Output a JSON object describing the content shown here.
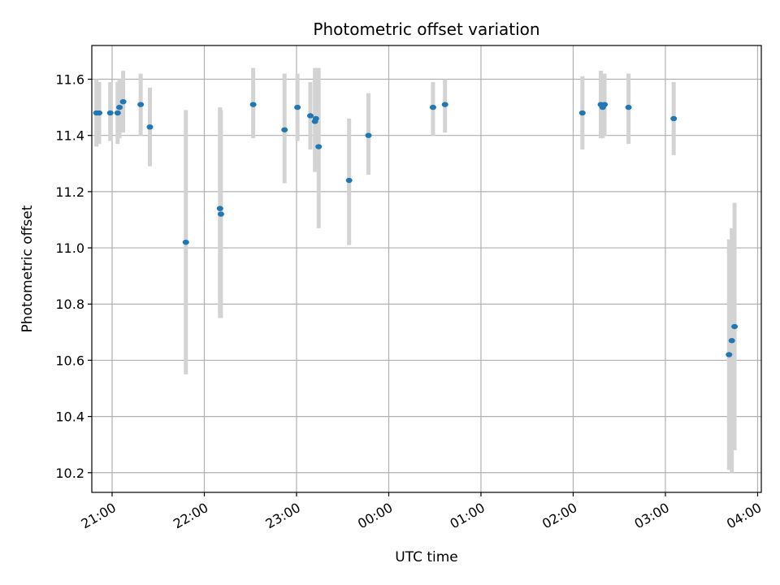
{
  "chart_data": {
    "type": "scatter",
    "title": "Photometric offset variation",
    "xlabel": "UTC time",
    "ylabel": "Photometric offset",
    "x_unit": "hours",
    "xlim": [
      20.78,
      28.04
    ],
    "ylim": [
      10.13,
      11.72
    ],
    "grid": true,
    "x_ticks": [
      {
        "value": 21,
        "label": "21:00"
      },
      {
        "value": 22,
        "label": "22:00"
      },
      {
        "value": 23,
        "label": "23:00"
      },
      {
        "value": 24,
        "label": "00:00"
      },
      {
        "value": 25,
        "label": "01:00"
      },
      {
        "value": 26,
        "label": "02:00"
      },
      {
        "value": 27,
        "label": "03:00"
      },
      {
        "value": 28,
        "label": "04:00"
      }
    ],
    "y_ticks": [
      {
        "value": 10.2,
        "label": "10.2"
      },
      {
        "value": 10.4,
        "label": "10.4"
      },
      {
        "value": 10.6,
        "label": "10.6"
      },
      {
        "value": 10.8,
        "label": "10.8"
      },
      {
        "value": 11.0,
        "label": "11.0"
      },
      {
        "value": 11.2,
        "label": "11.2"
      },
      {
        "value": 11.4,
        "label": "11.4"
      },
      {
        "value": 11.6,
        "label": "11.6"
      }
    ],
    "colors": {
      "point": "#1f77b4",
      "errorbar": "#d3d3d3",
      "grid": "#b0b0b0"
    },
    "points": [
      {
        "x": 20.83,
        "y": 11.48,
        "ylo": 11.36,
        "yhi": 11.6
      },
      {
        "x": 20.86,
        "y": 11.48,
        "ylo": 11.37,
        "yhi": 11.59
      },
      {
        "x": 20.98,
        "y": 11.48,
        "ylo": 11.38,
        "yhi": 11.59
      },
      {
        "x": 21.06,
        "y": 11.48,
        "ylo": 11.37,
        "yhi": 11.59
      },
      {
        "x": 21.08,
        "y": 11.5,
        "ylo": 11.39,
        "yhi": 11.6
      },
      {
        "x": 21.12,
        "y": 11.52,
        "ylo": 11.41,
        "yhi": 11.63
      },
      {
        "x": 21.31,
        "y": 11.51,
        "ylo": 11.4,
        "yhi": 11.62
      },
      {
        "x": 21.41,
        "y": 11.43,
        "ylo": 11.29,
        "yhi": 11.57
      },
      {
        "x": 21.8,
        "y": 11.02,
        "ylo": 10.55,
        "yhi": 11.49
      },
      {
        "x": 22.17,
        "y": 11.14,
        "ylo": 10.75,
        "yhi": 11.5
      },
      {
        "x": 22.18,
        "y": 11.12,
        "ylo": 10.75,
        "yhi": 11.49
      },
      {
        "x": 22.53,
        "y": 11.51,
        "ylo": 11.39,
        "yhi": 11.64
      },
      {
        "x": 22.87,
        "y": 11.42,
        "ylo": 11.23,
        "yhi": 11.62
      },
      {
        "x": 23.01,
        "y": 11.5,
        "ylo": 11.38,
        "yhi": 11.62
      },
      {
        "x": 23.15,
        "y": 11.47,
        "ylo": 11.35,
        "yhi": 11.59
      },
      {
        "x": 23.2,
        "y": 11.45,
        "ylo": 11.27,
        "yhi": 11.64
      },
      {
        "x": 23.21,
        "y": 11.46,
        "ylo": 11.29,
        "yhi": 11.63
      },
      {
        "x": 23.24,
        "y": 11.36,
        "ylo": 11.07,
        "yhi": 11.64
      },
      {
        "x": 23.57,
        "y": 11.24,
        "ylo": 11.01,
        "yhi": 11.46
      },
      {
        "x": 23.78,
        "y": 11.4,
        "ylo": 11.26,
        "yhi": 11.55
      },
      {
        "x": 24.48,
        "y": 11.5,
        "ylo": 11.4,
        "yhi": 11.59
      },
      {
        "x": 24.61,
        "y": 11.51,
        "ylo": 11.41,
        "yhi": 11.6
      },
      {
        "x": 26.1,
        "y": 11.48,
        "ylo": 11.35,
        "yhi": 11.61
      },
      {
        "x": 26.3,
        "y": 11.51,
        "ylo": 11.39,
        "yhi": 11.63
      },
      {
        "x": 26.32,
        "y": 11.5,
        "ylo": 11.39,
        "yhi": 11.62
      },
      {
        "x": 26.34,
        "y": 11.51,
        "ylo": 11.4,
        "yhi": 11.62
      },
      {
        "x": 26.6,
        "y": 11.5,
        "ylo": 11.37,
        "yhi": 11.62
      },
      {
        "x": 27.09,
        "y": 11.46,
        "ylo": 11.33,
        "yhi": 11.59
      },
      {
        "x": 27.69,
        "y": 10.62,
        "ylo": 10.21,
        "yhi": 11.03
      },
      {
        "x": 27.72,
        "y": 10.67,
        "ylo": 10.2,
        "yhi": 11.07
      },
      {
        "x": 27.75,
        "y": 10.72,
        "ylo": 10.28,
        "yhi": 11.16
      }
    ]
  }
}
